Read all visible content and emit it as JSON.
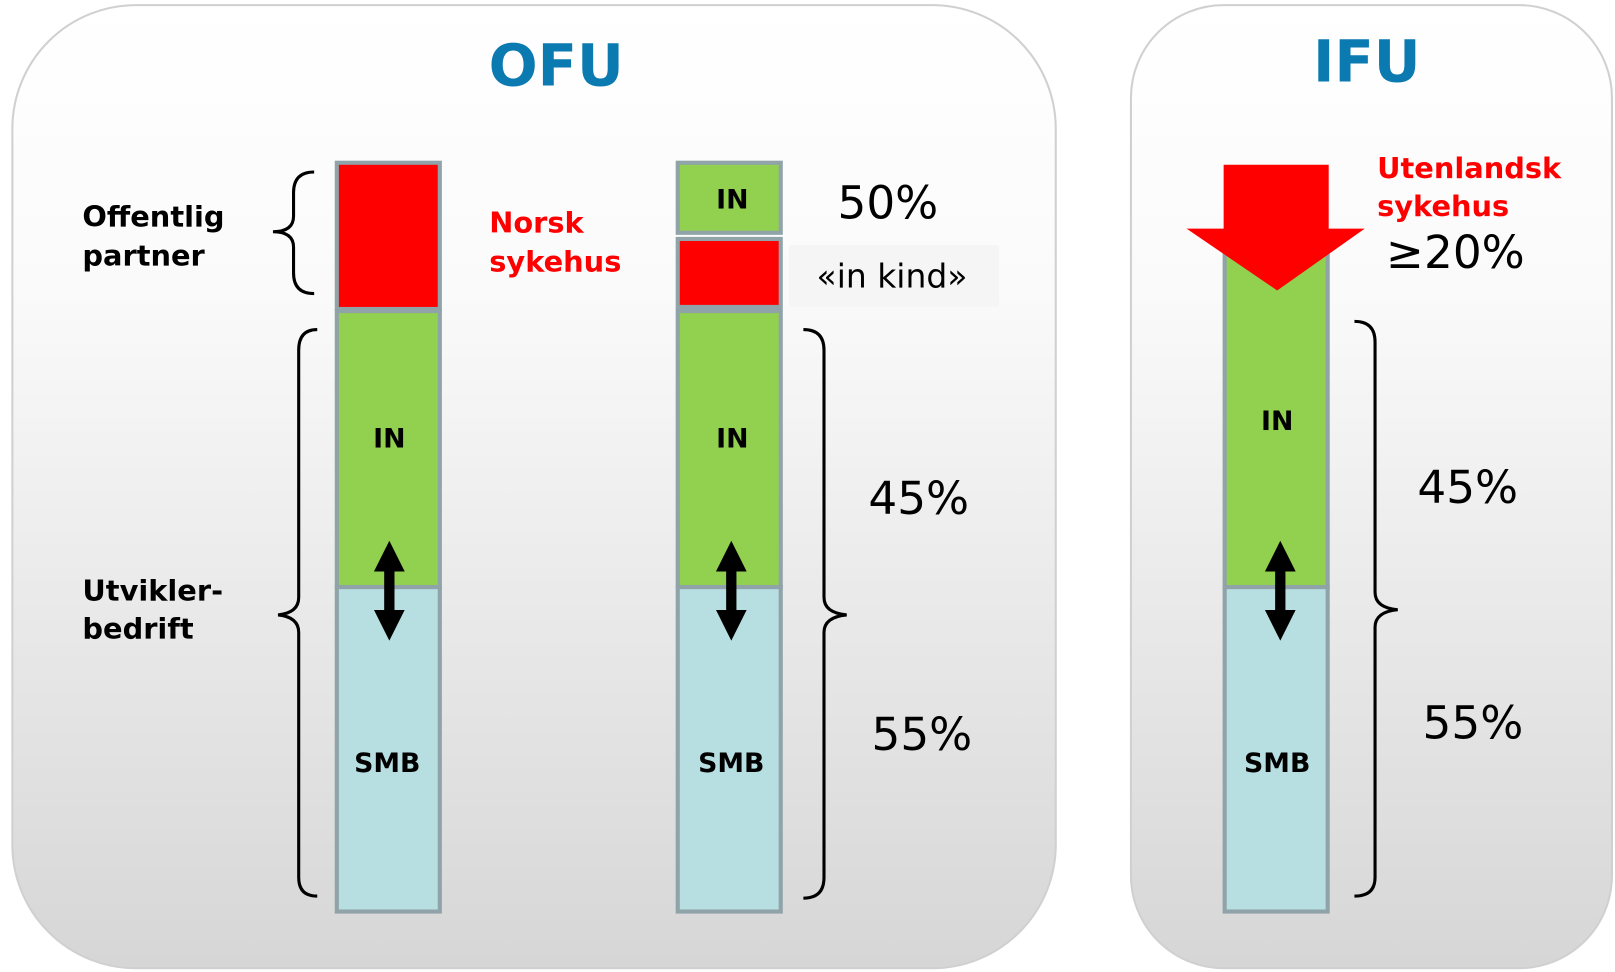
{
  "ofu": {
    "title": "OFU",
    "public_partner": [
      "Offentlig",
      "partner"
    ],
    "developer": [
      "Utvikler-",
      "bedrift"
    ],
    "hospital": [
      "Norsk",
      "sykehus"
    ],
    "bar1": {
      "middle": "IN",
      "bottom": "SMB"
    },
    "bar2": {
      "top": "IN",
      "middle": "IN",
      "bottom": "SMB",
      "share_top": "50%",
      "in_kind": "«in kind»",
      "share_middle": "45%",
      "share_bottom": "55%"
    }
  },
  "ifu": {
    "title": "IFU",
    "hospital": [
      "Utenlandsk",
      "sykehus"
    ],
    "share_hospital": "≥20%",
    "bar": {
      "middle": "IN",
      "bottom": "SMB",
      "share_middle": "45%",
      "share_bottom": "55%"
    }
  }
}
